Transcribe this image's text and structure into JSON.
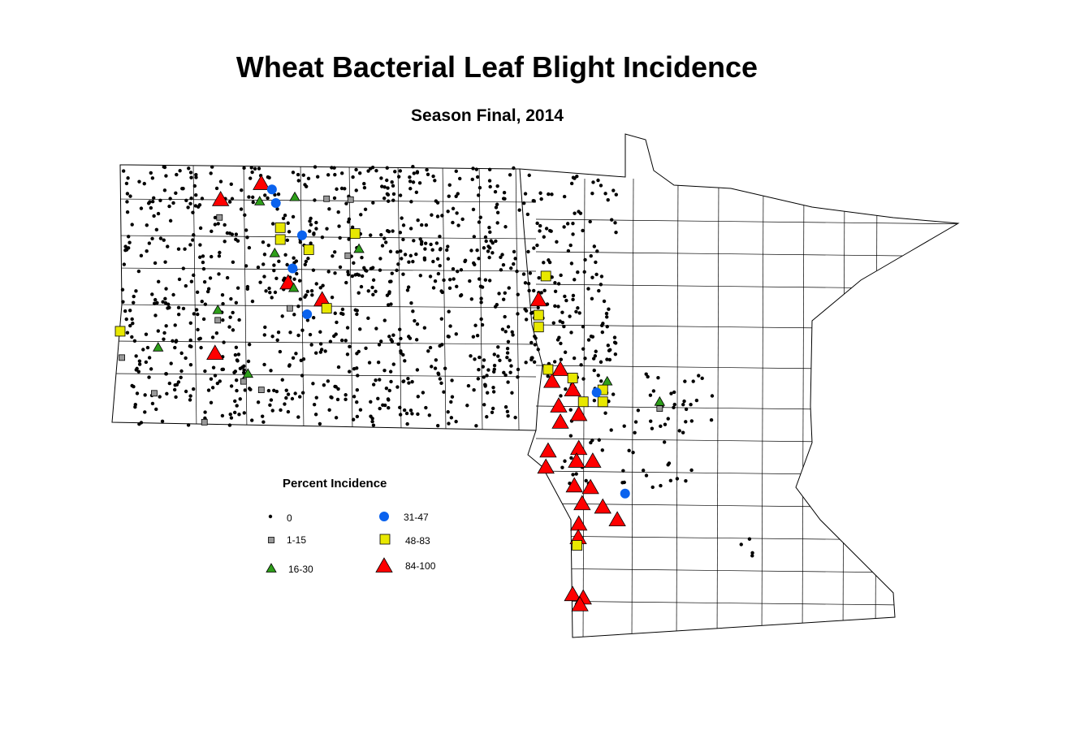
{
  "title": "Wheat Bacterial Leaf Blight Incidence",
  "subtitle": "Season Final, 2014",
  "legend": {
    "title": "Percent Incidence",
    "classes": [
      {
        "label": "0",
        "shape": "dot",
        "color": "#000000"
      },
      {
        "label": "1-15",
        "shape": "square-small",
        "color": "#999999"
      },
      {
        "label": "16-30",
        "shape": "triangle-small",
        "color": "#2e9e1a"
      },
      {
        "label": "31-47",
        "shape": "circle",
        "color": "#0a62ee"
      },
      {
        "label": "48-83",
        "shape": "square",
        "color": "#e8e800"
      },
      {
        "label": "84-100",
        "shape": "triangle",
        "color": "#ff0000"
      }
    ]
  },
  "chart_data": {
    "type": "scatter",
    "title": "Wheat Bacterial Leaf Blight Incidence",
    "subtitle": "Season Final, 2014",
    "region": "North Dakota and Minnesota county map",
    "coordinates": "longitude, latitude",
    "series": [
      {
        "name": "84-100",
        "points": [
          [
            -101.52,
            48.8
          ],
          [
            -102.25,
            48.61
          ],
          [
            -101.04,
            47.63
          ],
          [
            -100.43,
            47.43
          ],
          [
            -102.35,
            46.8
          ],
          [
            -96.55,
            47.43
          ],
          [
            -96.16,
            46.61
          ],
          [
            -96.31,
            46.47
          ],
          [
            -95.94,
            46.37
          ],
          [
            -96.19,
            46.18
          ],
          [
            -96.16,
            45.99
          ],
          [
            -95.83,
            46.08
          ],
          [
            -96.38,
            45.65
          ],
          [
            -96.42,
            45.46
          ],
          [
            -95.83,
            45.68
          ],
          [
            -95.87,
            45.53
          ],
          [
            -95.58,
            45.53
          ],
          [
            -95.91,
            45.24
          ],
          [
            -95.62,
            45.22
          ],
          [
            -95.77,
            45.03
          ],
          [
            -95.4,
            44.99
          ],
          [
            -95.14,
            44.84
          ],
          [
            -95.83,
            44.79
          ],
          [
            -95.84,
            44.63
          ],
          [
            -95.94,
            43.96
          ],
          [
            -95.75,
            43.92
          ],
          [
            -95.81,
            43.84
          ]
        ]
      },
      {
        "name": "48-83",
        "points": [
          [
            -101.18,
            48.28
          ],
          [
            -101.18,
            48.14
          ],
          [
            -100.67,
            48.02
          ],
          [
            -99.84,
            48.21
          ],
          [
            -100.35,
            47.33
          ],
          [
            -104.05,
            47.06
          ],
          [
            -96.55,
            47.25
          ],
          [
            -96.55,
            47.11
          ],
          [
            -96.42,
            47.71
          ],
          [
            -96.38,
            46.61
          ],
          [
            -95.94,
            46.51
          ],
          [
            -95.75,
            46.23
          ],
          [
            -95.4,
            46.37
          ],
          [
            -95.4,
            46.23
          ],
          [
            -95.86,
            44.54
          ]
        ]
      },
      {
        "name": "31-47",
        "points": [
          [
            -101.33,
            48.73
          ],
          [
            -101.26,
            48.57
          ],
          [
            -100.79,
            48.19
          ],
          [
            -100.96,
            47.8
          ],
          [
            -100.7,
            47.26
          ],
          [
            -95.51,
            46.34
          ],
          [
            -95.0,
            45.15
          ]
        ]
      },
      {
        "name": "16-30",
        "points": [
          [
            -100.92,
            48.64
          ],
          [
            -101.55,
            48.59
          ],
          [
            -101.28,
            47.98
          ],
          [
            -99.77,
            48.03
          ],
          [
            -100.94,
            47.57
          ],
          [
            -102.3,
            47.31
          ],
          [
            -103.37,
            46.87
          ],
          [
            -101.76,
            46.56
          ],
          [
            -95.32,
            46.47
          ],
          [
            -94.38,
            46.23
          ]
        ]
      },
      {
        "name": "1-15",
        "points": [
          [
            -102.27,
            48.4
          ],
          [
            -102.3,
            47.19
          ],
          [
            -101.01,
            47.33
          ],
          [
            -99.92,
            48.61
          ],
          [
            -100.35,
            48.62
          ],
          [
            -99.97,
            47.95
          ],
          [
            -104.02,
            46.75
          ],
          [
            -103.44,
            46.33
          ],
          [
            -102.54,
            45.99
          ],
          [
            -101.52,
            46.37
          ],
          [
            -101.84,
            46.47
          ],
          [
            -94.38,
            46.15
          ]
        ]
      }
    ]
  }
}
